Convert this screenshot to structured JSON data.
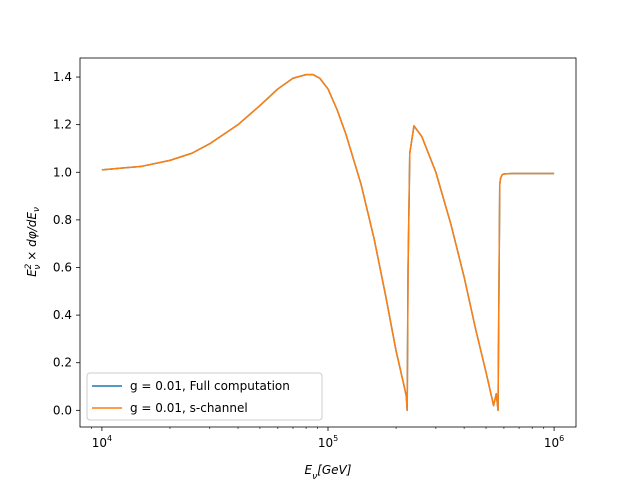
{
  "chart_data": {
    "type": "line",
    "title": "",
    "xlabel": "E_ν[GeV]",
    "ylabel": "E_ν^2 × dφ/dE_ν",
    "xscale": "log",
    "xlim": [
      8000,
      1250000
    ],
    "ylim": [
      -0.07,
      1.48
    ],
    "xticks": [
      {
        "value": 10000,
        "base": "10",
        "exp": "4"
      },
      {
        "value": 100000,
        "base": "10",
        "exp": "5"
      },
      {
        "value": 1000000,
        "base": "10",
        "exp": "6"
      }
    ],
    "yticks": [
      {
        "value": 0.0,
        "label": "0.0"
      },
      {
        "value": 0.2,
        "label": "0.2"
      },
      {
        "value": 0.4,
        "label": "0.4"
      },
      {
        "value": 0.6,
        "label": "0.6"
      },
      {
        "value": 0.8,
        "label": "0.8"
      },
      {
        "value": 1.0,
        "label": "1.0"
      },
      {
        "value": 1.2,
        "label": "1.2"
      },
      {
        "value": 1.4,
        "label": "1.4"
      }
    ],
    "grid": false,
    "legend_position": "lower-left",
    "series": [
      {
        "name": "g = 0.01, Full computation",
        "color": "#1f77b4",
        "x": [
          10000,
          15000,
          20000,
          25000,
          30000,
          40000,
          50000,
          60000,
          70000,
          80000,
          86000,
          92000,
          100000,
          110000,
          120000,
          140000,
          160000,
          180000,
          200000,
          215000,
          222000,
          224000,
          226000,
          230000,
          240000,
          260000,
          300000,
          350000,
          400000,
          450000,
          500000,
          540000,
          555000,
          565000,
          575000,
          580000,
          590000,
          600000,
          650000,
          800000,
          1000000
        ],
        "y": [
          1.01,
          1.025,
          1.05,
          1.08,
          1.12,
          1.2,
          1.28,
          1.35,
          1.395,
          1.41,
          1.41,
          1.395,
          1.35,
          1.26,
          1.16,
          0.95,
          0.72,
          0.48,
          0.25,
          0.12,
          0.06,
          0.0,
          0.6,
          1.08,
          1.195,
          1.15,
          1.0,
          0.78,
          0.56,
          0.34,
          0.16,
          0.02,
          0.07,
          0.0,
          0.95,
          0.975,
          0.99,
          0.993,
          0.995,
          0.995,
          0.995
        ]
      },
      {
        "name": "g = 0.01, s-channel",
        "color": "#ff7f0e",
        "x": [
          10000,
          15000,
          20000,
          25000,
          30000,
          40000,
          50000,
          60000,
          70000,
          80000,
          86000,
          92000,
          100000,
          110000,
          120000,
          140000,
          160000,
          180000,
          200000,
          215000,
          222000,
          224000,
          226000,
          230000,
          240000,
          260000,
          300000,
          350000,
          400000,
          450000,
          500000,
          540000,
          555000,
          565000,
          575000,
          580000,
          590000,
          600000,
          650000,
          800000,
          1000000
        ],
        "y": [
          1.01,
          1.025,
          1.05,
          1.08,
          1.12,
          1.2,
          1.28,
          1.35,
          1.395,
          1.41,
          1.41,
          1.395,
          1.35,
          1.26,
          1.16,
          0.95,
          0.72,
          0.48,
          0.25,
          0.12,
          0.06,
          0.0,
          0.6,
          1.08,
          1.195,
          1.15,
          1.0,
          0.78,
          0.56,
          0.34,
          0.16,
          0.02,
          0.07,
          0.0,
          0.95,
          0.975,
          0.99,
          0.993,
          0.995,
          0.995,
          0.995
        ]
      }
    ]
  }
}
